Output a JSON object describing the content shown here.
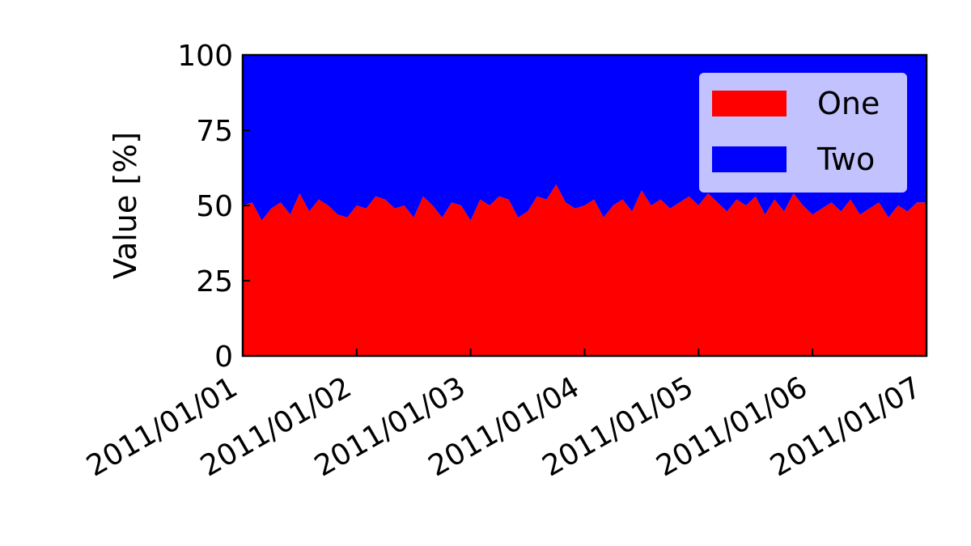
{
  "chart_data": {
    "type": "area",
    "stacked": true,
    "normalized_percent": true,
    "ylabel": "Value [%]",
    "xlabel": "",
    "ylim": [
      0,
      100
    ],
    "yticks": [
      0,
      25,
      50,
      75,
      100
    ],
    "xlim": [
      "2011-01-01",
      "2011-01-07"
    ],
    "xtick_labels": [
      "2011/01/01",
      "2011/01/02",
      "2011/01/03",
      "2011/01/04",
      "2011/01/05",
      "2011/01/06",
      "2011/01/07"
    ],
    "x": [
      "2011-01-01 00:00",
      "2011-01-01 02:00",
      "2011-01-01 04:00",
      "2011-01-01 06:00",
      "2011-01-01 08:00",
      "2011-01-01 10:00",
      "2011-01-01 12:00",
      "2011-01-01 14:00",
      "2011-01-01 16:00",
      "2011-01-01 18:00",
      "2011-01-01 20:00",
      "2011-01-01 22:00",
      "2011-01-02 00:00",
      "2011-01-02 02:00",
      "2011-01-02 04:00",
      "2011-01-02 06:00",
      "2011-01-02 08:00",
      "2011-01-02 10:00",
      "2011-01-02 12:00",
      "2011-01-02 14:00",
      "2011-01-02 16:00",
      "2011-01-02 18:00",
      "2011-01-02 20:00",
      "2011-01-02 22:00",
      "2011-01-03 00:00",
      "2011-01-03 02:00",
      "2011-01-03 04:00",
      "2011-01-03 06:00",
      "2011-01-03 08:00",
      "2011-01-03 10:00",
      "2011-01-03 12:00",
      "2011-01-03 14:00",
      "2011-01-03 16:00",
      "2011-01-03 18:00",
      "2011-01-03 20:00",
      "2011-01-03 22:00",
      "2011-01-04 00:00",
      "2011-01-04 02:00",
      "2011-01-04 04:00",
      "2011-01-04 06:00",
      "2011-01-04 08:00",
      "2011-01-04 10:00",
      "2011-01-04 12:00",
      "2011-01-04 14:00",
      "2011-01-04 16:00",
      "2011-01-04 18:00",
      "2011-01-04 20:00",
      "2011-01-04 22:00",
      "2011-01-05 00:00",
      "2011-01-05 02:00",
      "2011-01-05 04:00",
      "2011-01-05 06:00",
      "2011-01-05 08:00",
      "2011-01-05 10:00",
      "2011-01-05 12:00",
      "2011-01-05 14:00",
      "2011-01-05 16:00",
      "2011-01-05 18:00",
      "2011-01-05 20:00",
      "2011-01-05 22:00",
      "2011-01-06 00:00",
      "2011-01-06 02:00",
      "2011-01-06 04:00",
      "2011-01-06 06:00",
      "2011-01-06 08:00",
      "2011-01-06 10:00",
      "2011-01-06 12:00",
      "2011-01-06 14:00",
      "2011-01-06 16:00",
      "2011-01-06 18:00",
      "2011-01-06 20:00",
      "2011-01-06 22:00",
      "2011-01-07 00:00"
    ],
    "series": [
      {
        "name": "One",
        "color": "#ff0000",
        "values": [
          50,
          51,
          45,
          49,
          51,
          47,
          54,
          48,
          52,
          50,
          47,
          46,
          50,
          49,
          53,
          52,
          49,
          50,
          46,
          53,
          50,
          46,
          51,
          50,
          45,
          52,
          50,
          53,
          52,
          46,
          48,
          53,
          52,
          57,
          51,
          49,
          50,
          52,
          46,
          50,
          52,
          48,
          55,
          50,
          52,
          49,
          51,
          53,
          50,
          54,
          51,
          48,
          52,
          50,
          53,
          47,
          52,
          48,
          54,
          50,
          47,
          49,
          51,
          48,
          52,
          47,
          49,
          51,
          46,
          50,
          48,
          51,
          51
        ]
      },
      {
        "name": "Two",
        "color": "#0000ff",
        "values": [
          50,
          49,
          55,
          51,
          49,
          53,
          46,
          52,
          48,
          50,
          53,
          54,
          50,
          51,
          47,
          48,
          51,
          50,
          54,
          47,
          50,
          54,
          49,
          50,
          55,
          48,
          50,
          47,
          48,
          54,
          52,
          47,
          48,
          43,
          49,
          51,
          50,
          48,
          54,
          50,
          48,
          52,
          45,
          50,
          48,
          51,
          49,
          47,
          50,
          46,
          49,
          52,
          48,
          50,
          47,
          53,
          48,
          52,
          46,
          50,
          53,
          51,
          49,
          52,
          48,
          53,
          51,
          49,
          54,
          50,
          52,
          49,
          49
        ]
      }
    ],
    "legend": {
      "position": "top-right",
      "background": "#ccccff"
    },
    "grid": false
  }
}
